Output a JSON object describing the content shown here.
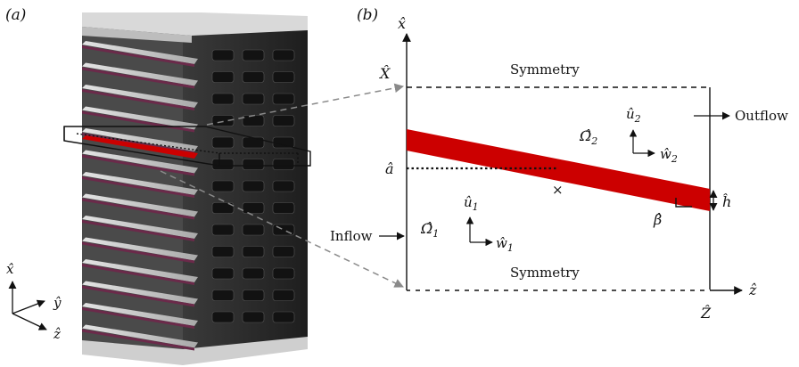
{
  "panel_a": {
    "label": "(a)",
    "axis_labels": {
      "x": "x̂",
      "y": "ŷ",
      "z": "ẑ"
    }
  },
  "panel_b": {
    "label": "(b)",
    "axis_x": "x̂",
    "axis_z": "ẑ",
    "X_hat": "X̂",
    "Z_hat": "Ẑ",
    "a_hat": "â",
    "h_hat": "ĥ",
    "beta_hat": "β̂",
    "symmetry_top": "Symmetry",
    "symmetry_bottom": "Symmetry",
    "inflow": "Inflow",
    "outflow": "Outflow",
    "omega1": "Ω̂",
    "omega1_sub": "1",
    "omega2": "Ω̂",
    "omega2_sub": "2",
    "u1": "û",
    "u1_sub": "1",
    "w1": "ŵ",
    "w1_sub": "1",
    "u2": "û",
    "u2_sub": "2",
    "w2": "ŵ",
    "w2_sub": "2",
    "centroid_mark": "×"
  },
  "colors": {
    "plate_red": "#cc0000",
    "stack_dark": "#2b2b2b",
    "plate_light": "#c8c8c8",
    "guide_gray": "#8a8a8a"
  }
}
